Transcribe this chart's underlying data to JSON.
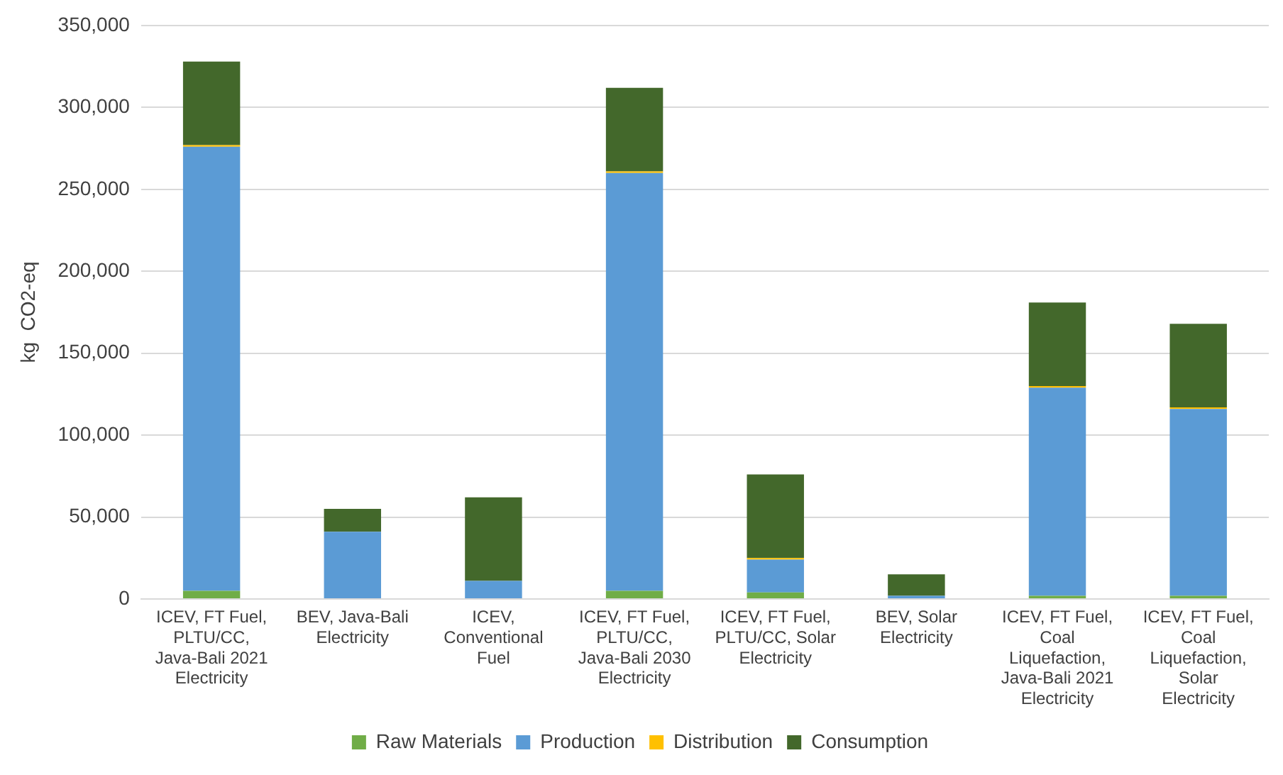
{
  "chart_data": {
    "type": "bar",
    "stacked": true,
    "ylabel": "kg  CO2-eq",
    "categories": [
      "ICEV, FT Fuel, PLTU/CC, Java-Bali 2021 Electricity",
      "BEV, Java-Bali Electricity",
      "ICEV, Conventional Fuel",
      "ICEV, FT Fuel, PLTU/CC, Java-Bali 2030 Electricity",
      "ICEV, FT Fuel, PLTU/CC, Solar Electricity",
      "BEV, Solar Electricity",
      "ICEV, FT Fuel, Coal Liquefaction, Java-Bali 2021 Electricity",
      "ICEV, FT Fuel, Coal Liquefaction, Solar Electricity"
    ],
    "series": [
      {
        "name": "Raw Materials",
        "color": "#70ad47",
        "values": [
          5000,
          0,
          0,
          5000,
          4000,
          0,
          2000,
          2000
        ]
      },
      {
        "name": "Production",
        "color": "#5b9bd5",
        "values": [
          271000,
          41000,
          11000,
          255000,
          20000,
          2000,
          127000,
          114000
        ]
      },
      {
        "name": "Distribution",
        "color": "#ffc000",
        "values": [
          1000,
          0,
          0,
          1000,
          1000,
          0,
          1000,
          1000
        ]
      },
      {
        "name": "Consumption",
        "color": "#43682b",
        "values": [
          51000,
          14000,
          51000,
          51000,
          51000,
          13000,
          51000,
          51000
        ]
      }
    ],
    "ylim": [
      0,
      350000
    ],
    "yticks": [
      {
        "value": 0,
        "label": "0"
      },
      {
        "value": 50000,
        "label": "50,000"
      },
      {
        "value": 100000,
        "label": "100,000"
      },
      {
        "value": 150000,
        "label": "150,000"
      },
      {
        "value": 200000,
        "label": "200,000"
      },
      {
        "value": 250000,
        "label": "250,000"
      },
      {
        "value": 300000,
        "label": "300,000"
      },
      {
        "value": 350000,
        "label": "350,000"
      }
    ],
    "grid": "y",
    "legend": "bottom"
  }
}
